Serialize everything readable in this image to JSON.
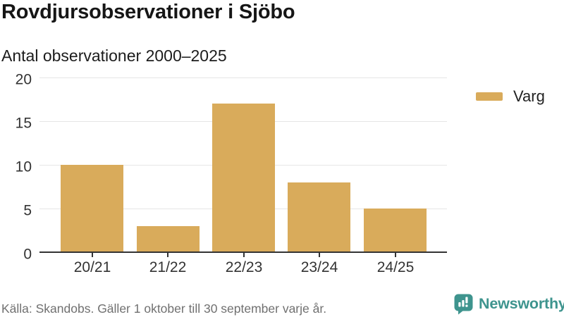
{
  "header": {
    "title": "Rovdjursobservationer i Sjöbo",
    "subtitle": "Antal observationer 2000–2025"
  },
  "chart_data": {
    "type": "bar",
    "title": "Rovdjursobservationer i Sjöbo",
    "subtitle": "Antal observationer 2000–2025",
    "categories": [
      "20/21",
      "21/22",
      "22/23",
      "23/24",
      "24/25"
    ],
    "series": [
      {
        "name": "Varg",
        "color": "#d9ab5b",
        "values": [
          10,
          3,
          17,
          8,
          5
        ]
      }
    ],
    "xlabel": "",
    "ylabel": "",
    "ylim": [
      0,
      20
    ],
    "yticks": [
      0,
      5,
      10,
      15,
      20
    ],
    "grid": true,
    "legend_position": "right"
  },
  "legend": {
    "items": [
      {
        "label": "Varg",
        "color": "#d9ab5b"
      }
    ]
  },
  "footer": {
    "source": "Källa: Skandobs. Gäller 1 oktober till 30 september varje år.",
    "brand": "Newsworthy",
    "brand_color": "#3e948e"
  },
  "colors": {
    "bar": "#d9ab5b",
    "axis": "#333333",
    "gridline": "#e6e6e6",
    "title_text": "#161616",
    "tick_text": "#333333",
    "muted_text": "#707070"
  }
}
